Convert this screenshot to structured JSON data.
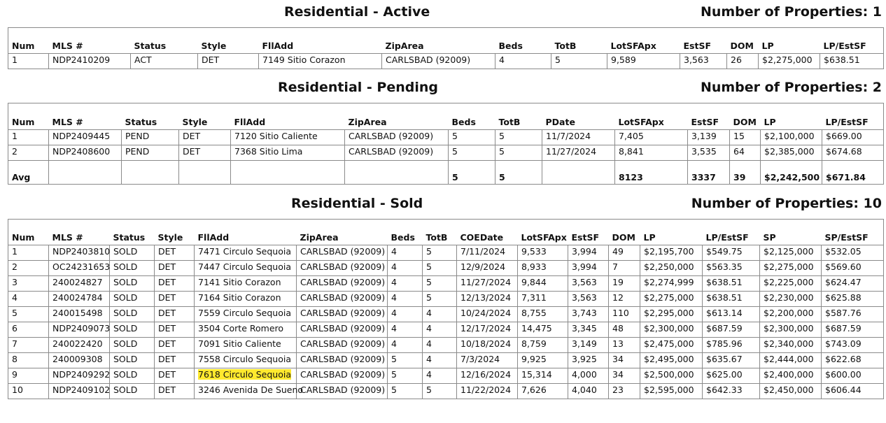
{
  "active": {
    "title": "Residential - Active",
    "count_label": "Number of Properties: 1",
    "headers": [
      "Num",
      "MLS #",
      "Status",
      "Style",
      "FllAdd",
      "ZipArea",
      "Beds",
      "TotB",
      "LotSFApx",
      "EstSF",
      "DOM",
      "LP",
      "LP/EstSF"
    ],
    "rows": [
      [
        "1",
        "NDP2410209",
        "ACT",
        "DET",
        "7149  Sitio Corazon",
        "CARLSBAD (92009)",
        "4",
        "5",
        "9,589",
        "3,563",
        "26",
        "$2,275,000",
        "$638.51"
      ]
    ]
  },
  "pending": {
    "title": "Residential - Pending",
    "count_label": "Number of Properties: 2",
    "headers": [
      "Num",
      "MLS #",
      "Status",
      "Style",
      "FllAdd",
      "ZipArea",
      "Beds",
      "TotB",
      "PDate",
      "LotSFApx",
      "EstSF",
      "DOM",
      "LP",
      "LP/EstSF"
    ],
    "rows": [
      [
        "1",
        "NDP2409445",
        "PEND",
        "DET",
        "7120  Sitio Caliente",
        "CARLSBAD (92009)",
        "5",
        "5",
        "11/7/2024",
        "7,405",
        "3,139",
        "15",
        "$2,100,000",
        "$669.00"
      ],
      [
        "2",
        "NDP2408600",
        "PEND",
        "DET",
        "7368  Sitio Lima",
        "CARLSBAD (92009)",
        "5",
        "5",
        "11/27/2024",
        "8,841",
        "3,535",
        "64",
        "$2,385,000",
        "$674.68"
      ]
    ],
    "avg": [
      "Avg",
      "",
      "",
      "",
      "",
      "",
      "5",
      "5",
      "",
      "8123",
      "3337",
      "39",
      "$2,242,500",
      "$671.84"
    ]
  },
  "sold": {
    "title": "Residential - Sold",
    "count_label": "Number of Properties: 10",
    "headers": [
      "Num",
      "MLS #",
      "Status",
      "Style",
      "FllAdd",
      "ZipArea",
      "Beds",
      "TotB",
      "COEDate",
      "LotSFApx",
      "EstSF",
      "DOM",
      "LP",
      "LP/EstSF",
      "SP",
      "SP/EstSF"
    ],
    "highlight_color": "#ffe92e",
    "rows": [
      [
        "1",
        "NDP2403810",
        "SOLD",
        "DET",
        "7471  Circulo Sequoia",
        "CARLSBAD (92009)",
        "4",
        "5",
        "7/11/2024",
        "9,533",
        "3,994",
        "49",
        "$2,195,700",
        "$549.75",
        "$2,125,000",
        "$532.05"
      ],
      [
        "2",
        "OC24231653",
        "SOLD",
        "DET",
        "7447  Circulo Sequoia",
        "CARLSBAD (92009)",
        "4",
        "5",
        "12/9/2024",
        "8,933",
        "3,994",
        "7",
        "$2,250,000",
        "$563.35",
        "$2,275,000",
        "$569.60"
      ],
      [
        "3",
        "240024827",
        "SOLD",
        "DET",
        "7141 Sitio Corazon",
        "CARLSBAD (92009)",
        "4",
        "5",
        "11/27/2024",
        "9,844",
        "3,563",
        "19",
        "$2,274,999",
        "$638.51",
        "$2,225,000",
        "$624.47"
      ],
      [
        "4",
        "240024784",
        "SOLD",
        "DET",
        "7164 Sitio Corazon",
        "CARLSBAD (92009)",
        "4",
        "5",
        "12/13/2024",
        "7,311",
        "3,563",
        "12",
        "$2,275,000",
        "$638.51",
        "$2,230,000",
        "$625.88"
      ],
      [
        "5",
        "240015498",
        "SOLD",
        "DET",
        "7559 Circulo Sequoia",
        "CARLSBAD (92009)",
        "4",
        "4",
        "10/24/2024",
        "8,755",
        "3,743",
        "110",
        "$2,295,000",
        "$613.14",
        "$2,200,000",
        "$587.76"
      ],
      [
        "6",
        "NDP2409073",
        "SOLD",
        "DET",
        "3504  Corte Romero",
        "CARLSBAD (92009)",
        "4",
        "4",
        "12/17/2024",
        "14,475",
        "3,345",
        "48",
        "$2,300,000",
        "$687.59",
        "$2,300,000",
        "$687.59"
      ],
      [
        "7",
        "240022420",
        "SOLD",
        "DET",
        "7091 Sitio Caliente",
        "CARLSBAD (92009)",
        "4",
        "4",
        "10/18/2024",
        "8,759",
        "3,149",
        "13",
        "$2,475,000",
        "$785.96",
        "$2,340,000",
        "$743.09"
      ],
      [
        "8",
        "240009308",
        "SOLD",
        "DET",
        "7558 Circulo Sequoia",
        "CARLSBAD (92009)",
        "5",
        "4",
        "7/3/2024",
        "9,925",
        "3,925",
        "34",
        "$2,495,000",
        "$635.67",
        "$2,444,000",
        "$622.68"
      ],
      [
        "9",
        "NDP2409292",
        "SOLD",
        "DET",
        "7618  Circulo Sequoia",
        "CARLSBAD (92009)",
        "5",
        "4",
        "12/16/2024",
        "15,314",
        "4,000",
        "34",
        "$2,500,000",
        "$625.00",
        "$2,400,000",
        "$600.00"
      ],
      [
        "10",
        "NDP2409102",
        "SOLD",
        "DET",
        "3246  Avenida De Sueno",
        "CARLSBAD (92009)",
        "5",
        "5",
        "11/22/2024",
        "7,626",
        "4,040",
        "23",
        "$2,595,000",
        "$642.33",
        "$2,450,000",
        "$606.44"
      ]
    ]
  }
}
